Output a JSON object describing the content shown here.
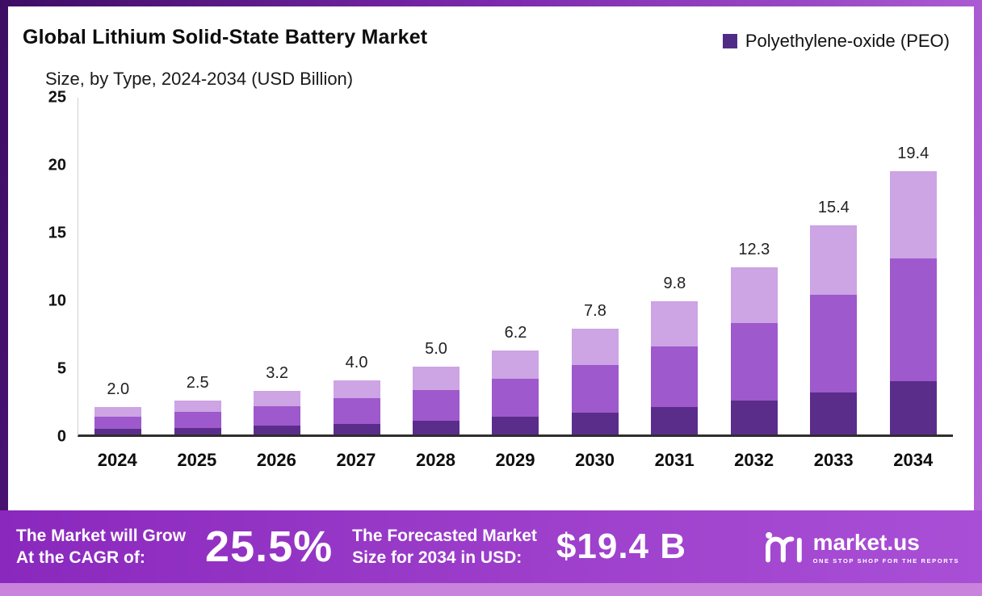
{
  "header": {
    "title": "Global Lithium Solid-State Battery Market",
    "subtitle": "Size, by Type, 2024-2034 (USD Billion)"
  },
  "legend": {
    "label": "Polyethylene-oxide (PEO)",
    "color": "#4f2d87"
  },
  "chart_data": {
    "type": "bar",
    "stacked": true,
    "title": "Global Lithium Solid-State Battery Market Size, by Type, 2024-2034 (USD Billion)",
    "categories": [
      "2024",
      "2025",
      "2026",
      "2027",
      "2028",
      "2029",
      "2030",
      "2031",
      "2032",
      "2033",
      "2034"
    ],
    "totals": [
      2.0,
      2.5,
      3.2,
      4.0,
      5.0,
      6.2,
      7.8,
      9.8,
      12.3,
      15.4,
      19.4
    ],
    "total_labels": [
      "2.0",
      "2.5",
      "3.2",
      "4.0",
      "5.0",
      "6.2",
      "7.8",
      "9.8",
      "12.3",
      "15.4",
      "19.4"
    ],
    "series": [
      {
        "name": "segment-bottom",
        "color": "#5b2d8b",
        "values": [
          0.4,
          0.5,
          0.65,
          0.8,
          1.0,
          1.3,
          1.6,
          2.0,
          2.5,
          3.1,
          3.9
        ]
      },
      {
        "name": "segment-middle",
        "color": "#9e59cc",
        "values": [
          0.9,
          1.15,
          1.45,
          1.9,
          2.3,
          2.8,
          3.5,
          4.5,
          5.7,
          7.2,
          9.1
        ]
      },
      {
        "name": "Polyethylene-oxide (PEO)",
        "color": "#cda4e4",
        "values": [
          0.7,
          0.85,
          1.1,
          1.3,
          1.7,
          2.1,
          2.7,
          3.3,
          4.1,
          5.1,
          6.4
        ]
      }
    ],
    "ylim": [
      0,
      25
    ],
    "yticks": [
      0,
      5,
      10,
      15,
      20,
      25
    ],
    "legend_position": "top-right",
    "grid": false,
    "ylabel": "USD Billion"
  },
  "footer": {
    "cagr_label_line1": "The Market will Grow",
    "cagr_label_line2": "At the CAGR of:",
    "cagr_value": "25.5%",
    "forecast_label_line1": "The Forecasted Market",
    "forecast_label_line2": "Size for 2034 in USD:",
    "forecast_value": "$19.4 B",
    "brand": "market.us",
    "brand_tagline": "ONE STOP SHOP FOR THE REPORTS"
  },
  "colors": {
    "bar_dark": "#5b2d8b",
    "bar_mid": "#9e59cc",
    "bar_light": "#cda4e4",
    "banner_start": "#8a28bd",
    "banner_end": "#a94fd6"
  }
}
